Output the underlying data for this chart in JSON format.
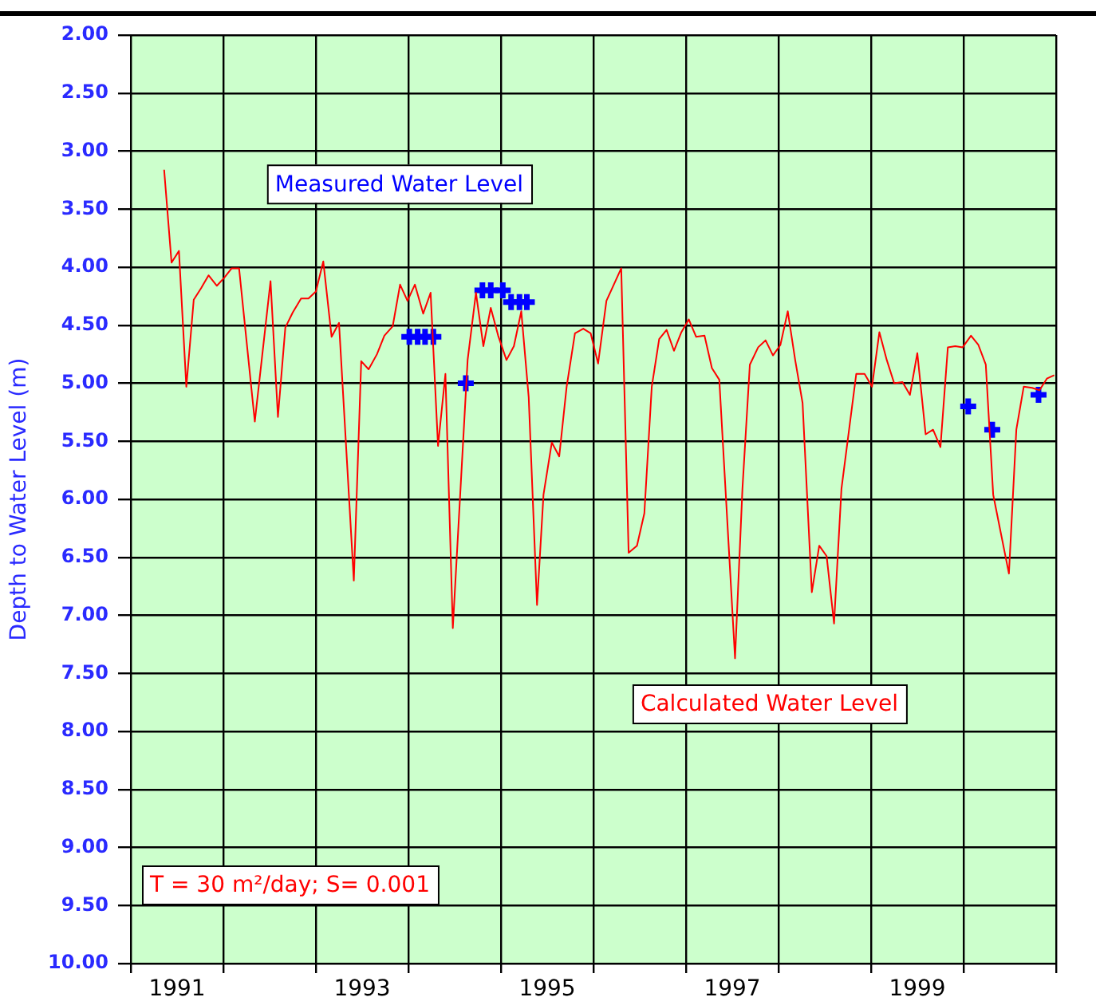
{
  "chart_data": {
    "type": "line",
    "ylabel": "Depth to Water Level (m)",
    "xlim": [
      1991,
      2001
    ],
    "xticks": [
      {
        "value": 1991,
        "label": null
      },
      {
        "value": 1991.5,
        "label": "1991"
      },
      {
        "value": 1992,
        "label": null
      },
      {
        "value": 1993,
        "label": null
      },
      {
        "value": 1993.5,
        "label": "1993"
      },
      {
        "value": 1994,
        "label": null
      },
      {
        "value": 1995,
        "label": null
      },
      {
        "value": 1995.5,
        "label": "1995"
      },
      {
        "value": 1996,
        "label": null
      },
      {
        "value": 1997,
        "label": null
      },
      {
        "value": 1997.5,
        "label": "1997"
      },
      {
        "value": 1998,
        "label": null
      },
      {
        "value": 1999,
        "label": null
      },
      {
        "value": 1999.5,
        "label": "1999"
      },
      {
        "value": 2000,
        "label": null
      },
      {
        "value": 2001,
        "label": null
      }
    ],
    "ylim": [
      10,
      2
    ],
    "yticks": [
      {
        "value": 2,
        "label": "2.00"
      },
      {
        "value": 2.5,
        "label": "2.50"
      },
      {
        "value": 3,
        "label": "3.00"
      },
      {
        "value": 3.5,
        "label": "3.50"
      },
      {
        "value": 4,
        "label": "4.00"
      },
      {
        "value": 4.5,
        "label": "4.50"
      },
      {
        "value": 5,
        "label": "5.00"
      },
      {
        "value": 5.5,
        "label": "5.50"
      },
      {
        "value": 6,
        "label": "6.00"
      },
      {
        "value": 6.5,
        "label": "6.50"
      },
      {
        "value": 7,
        "label": "7.00"
      },
      {
        "value": 7.5,
        "label": "7.50"
      },
      {
        "value": 8,
        "label": "8.00"
      },
      {
        "value": 8.5,
        "label": "8.50"
      },
      {
        "value": 9,
        "label": "9.00"
      },
      {
        "value": 9.5,
        "label": "9.50"
      },
      {
        "value": 10,
        "label": "10.00"
      }
    ],
    "grid": true,
    "legend": false,
    "series": [
      {
        "name": "Calculated Water Level",
        "color": "#ff0000",
        "marker": "none",
        "line_style": "solid",
        "x": [
          1991.36,
          1991.44,
          1991.52,
          1991.6,
          1991.68,
          1991.76,
          1991.84,
          1991.93,
          1992.01,
          1992.09,
          1992.17,
          1992.34,
          1992.51,
          1992.59,
          1992.67,
          1992.75,
          1992.84,
          1992.92,
          1993.0,
          1993.08,
          1993.17,
          1993.25,
          1993.41,
          1993.49,
          1993.57,
          1993.66,
          1993.74,
          1993.83,
          1993.91,
          1993.99,
          1994.07,
          1994.16,
          1994.24,
          1994.32,
          1994.4,
          1994.48,
          1994.64,
          1994.73,
          1994.81,
          1994.89,
          1994.97,
          1995.06,
          1995.14,
          1995.22,
          1995.3,
          1995.39,
          1995.46,
          1995.55,
          1995.63,
          1995.71,
          1995.8,
          1995.89,
          1995.97,
          1996.05,
          1996.14,
          1996.3,
          1996.38,
          1996.47,
          1996.55,
          1996.63,
          1996.71,
          1996.79,
          1996.87,
          1996.95,
          1997.03,
          1997.11,
          1997.2,
          1997.28,
          1997.36,
          1997.53,
          1997.61,
          1997.69,
          1997.78,
          1997.86,
          1997.94,
          1998.02,
          1998.1,
          1998.18,
          1998.26,
          1998.36,
          1998.44,
          1998.52,
          1998.6,
          1998.68,
          1998.84,
          1998.93,
          1999.01,
          1999.09,
          1999.17,
          1999.25,
          1999.34,
          1999.42,
          1999.5,
          1999.59,
          1999.67,
          1999.75,
          1999.83,
          1999.91,
          1999.99,
          2000.08,
          2000.16,
          2000.24,
          2000.32,
          2000.49,
          2000.57,
          2000.65,
          2000.74,
          2000.82,
          2000.9,
          2000.98
        ],
        "values": [
          3.16,
          3.96,
          3.86,
          5.03,
          4.28,
          4.18,
          4.07,
          4.16,
          4.09,
          4.01,
          4.01,
          5.33,
          4.12,
          5.29,
          4.52,
          4.39,
          4.27,
          4.27,
          4.21,
          3.95,
          4.6,
          4.48,
          6.7,
          4.81,
          4.88,
          4.75,
          4.59,
          4.51,
          4.15,
          4.29,
          4.15,
          4.4,
          4.22,
          5.54,
          4.92,
          7.11,
          4.8,
          4.22,
          4.68,
          4.35,
          4.59,
          4.8,
          4.68,
          4.38,
          5.12,
          6.91,
          5.96,
          5.51,
          5.63,
          5.03,
          4.57,
          4.53,
          4.57,
          4.83,
          4.29,
          4.01,
          6.46,
          6.4,
          6.12,
          5.03,
          4.62,
          4.54,
          4.72,
          4.56,
          4.45,
          4.6,
          4.59,
          4.87,
          4.97,
          7.37,
          5.91,
          4.84,
          4.69,
          4.63,
          4.76,
          4.67,
          4.38,
          4.8,
          5.17,
          6.8,
          6.4,
          6.49,
          7.07,
          5.91,
          4.92,
          4.92,
          5.03,
          4.56,
          4.8,
          5.0,
          4.99,
          5.1,
          4.74,
          5.44,
          5.4,
          5.55,
          4.69,
          4.68,
          4.69,
          4.59,
          4.67,
          4.84,
          5.96,
          6.64,
          5.4,
          5.03,
          5.04,
          5.06,
          4.96,
          4.93
        ]
      },
      {
        "name": "Measured Water Level",
        "type": "scatter",
        "color": "#0000ff",
        "marker": "cross",
        "x": [
          1994.01,
          1994.1,
          1994.18,
          1994.27,
          1994.62,
          1994.8,
          1994.89,
          1995.02,
          1995.11,
          1995.2,
          1995.28,
          2000.05,
          2000.31,
          2000.81
        ],
        "values": [
          4.6,
          4.6,
          4.6,
          4.6,
          5.0,
          4.2,
          4.2,
          4.2,
          4.3,
          4.3,
          4.3,
          5.2,
          5.4,
          5.1
        ]
      }
    ],
    "annotations": [
      "T = 30 m²/day; S= 0.001"
    ]
  }
}
